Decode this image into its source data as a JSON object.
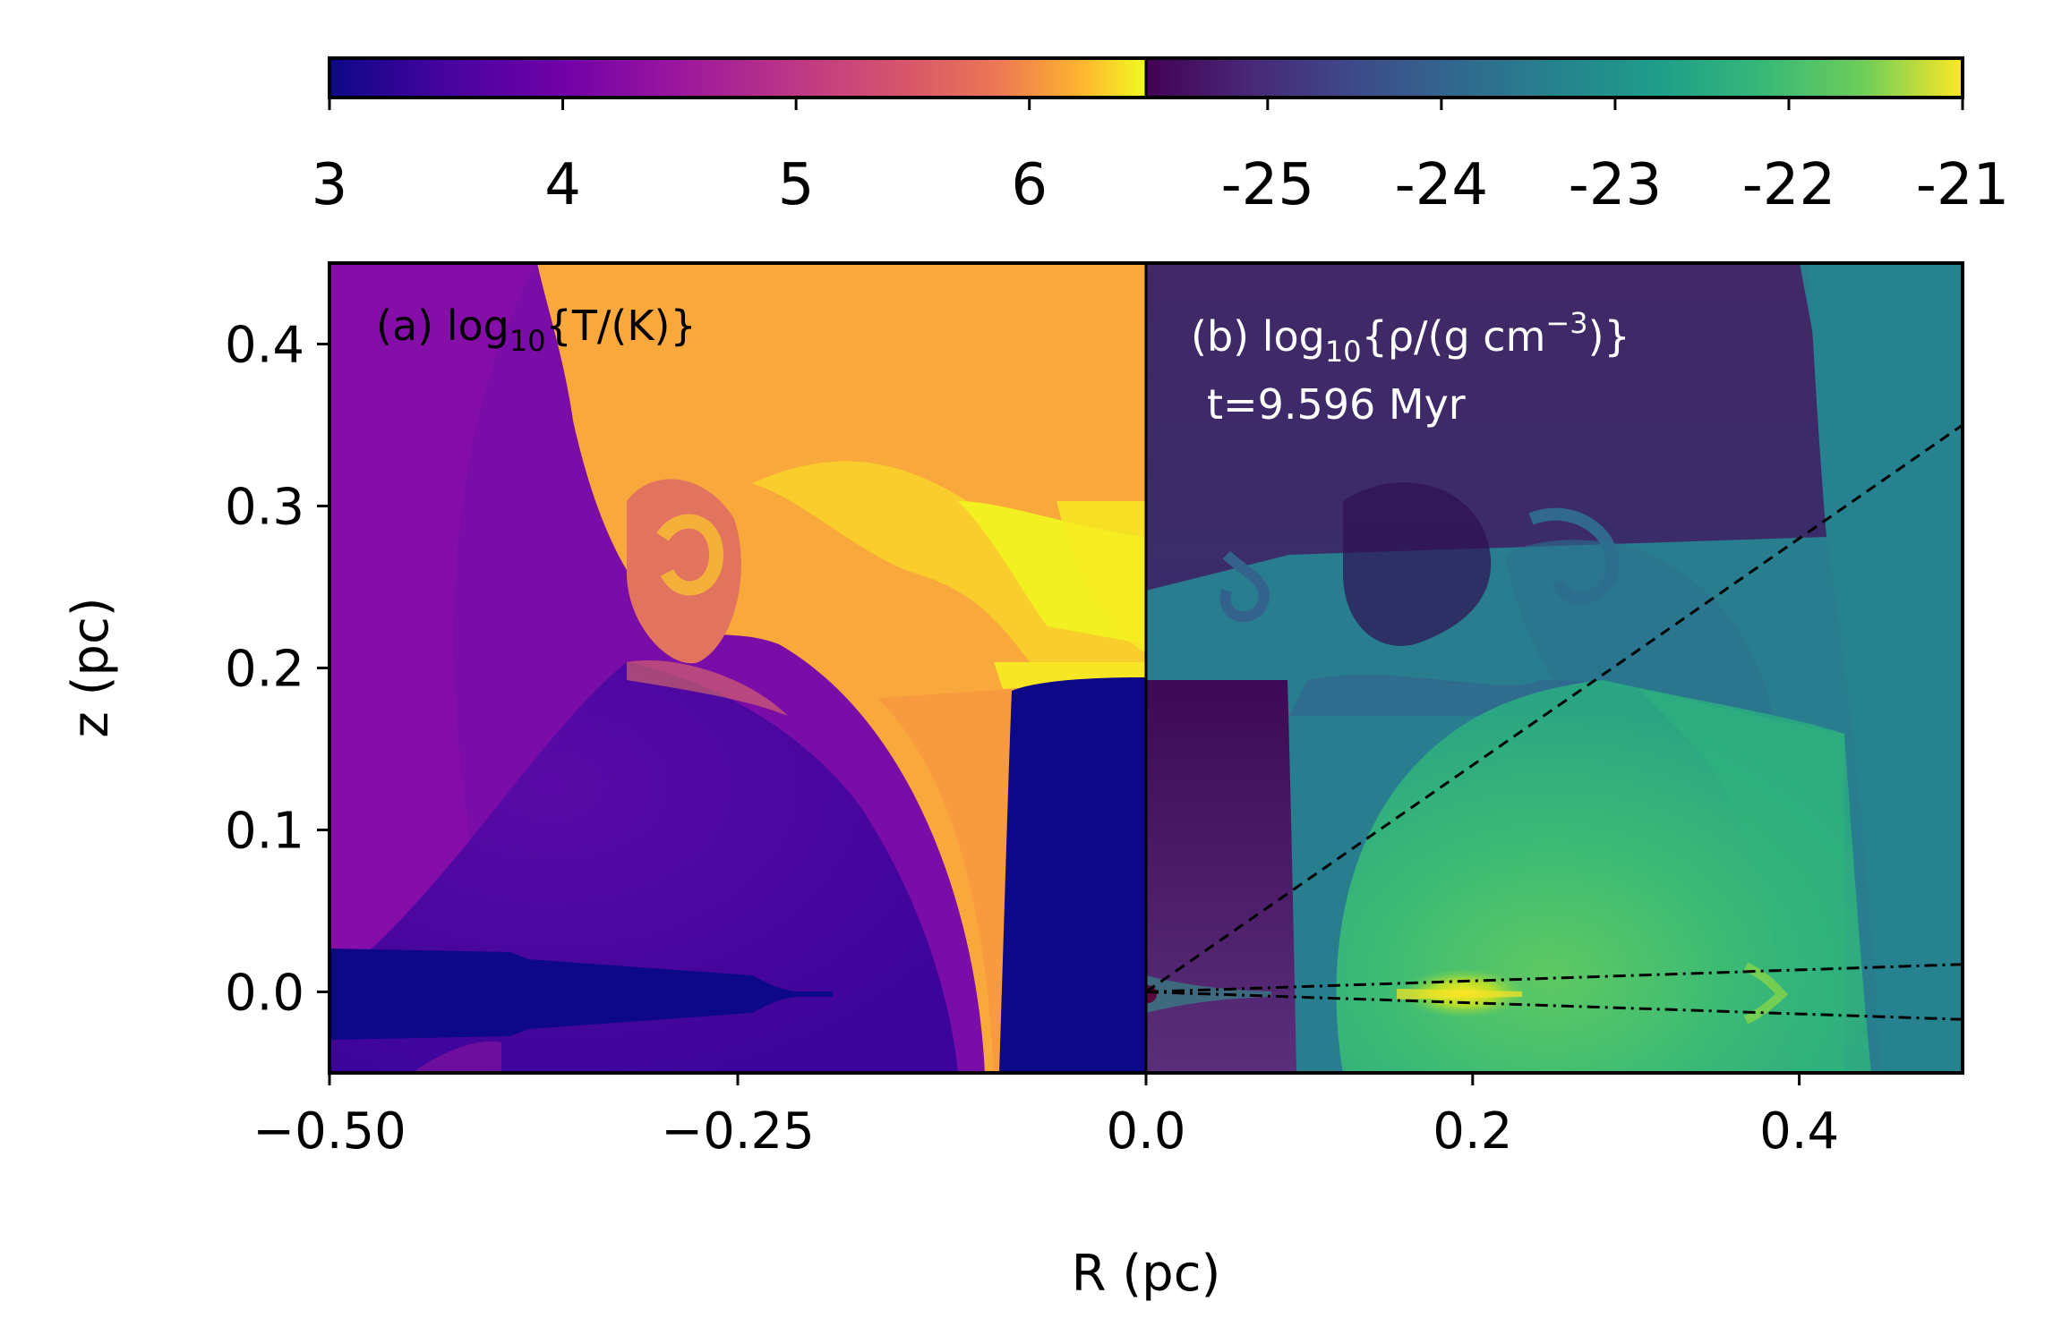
{
  "chart_data": {
    "type": "heatmap",
    "xlabel": "R (pc)",
    "ylabel": "z (pc)",
    "xlim": [
      -0.5,
      0.5
    ],
    "ylim": [
      -0.05,
      0.45
    ],
    "x_ticks": [
      -0.5,
      -0.25,
      0.0,
      0.2,
      0.4
    ],
    "x_tick_labels": [
      "−0.50",
      "−0.25",
      "0.0",
      "0.2",
      "0.4"
    ],
    "y_ticks": [
      0.0,
      0.1,
      0.2,
      0.3,
      0.4
    ],
    "y_tick_labels": [
      "0.0",
      "0.1",
      "0.2",
      "0.3",
      "0.4"
    ],
    "panels": [
      {
        "id": "a",
        "side": "left",
        "quantity": "log10 temperature",
        "label_prefix": "(a) log",
        "label_sub": "10",
        "label_body": "{T/(K)}",
        "colormap": "plasma",
        "colorbar_range": [
          3,
          6.5
        ],
        "colorbar_ticks": [
          3,
          4,
          5,
          6
        ],
        "colorbar_tick_labels": [
          "3",
          "4",
          "5",
          "6"
        ]
      },
      {
        "id": "b",
        "side": "right",
        "quantity": "log10 density",
        "label_prefix": "(b) log",
        "label_sub": "10",
        "label_body": "{ρ/(g cm",
        "label_sup": "−3",
        "label_close": ")}",
        "time_label": "t=9.596 Myr",
        "colormap": "viridis",
        "colorbar_range": [
          -25.7,
          -21
        ],
        "colorbar_ticks": [
          -25,
          -24,
          -23,
          -22,
          -21
        ],
        "colorbar_tick_labels": [
          "-25",
          "-24",
          "-23",
          "-22",
          "-21"
        ]
      }
    ],
    "overlay_lines": [
      {
        "style": "dashed",
        "from": [
          0.0,
          0.0
        ],
        "to": [
          0.5,
          0.35
        ]
      },
      {
        "style": "dashdot",
        "from": [
          0.0,
          0.0
        ],
        "to": [
          0.5,
          0.017
        ]
      },
      {
        "style": "dashdot",
        "from": [
          0.0,
          0.0
        ],
        "to": [
          0.5,
          -0.017
        ]
      }
    ]
  }
}
